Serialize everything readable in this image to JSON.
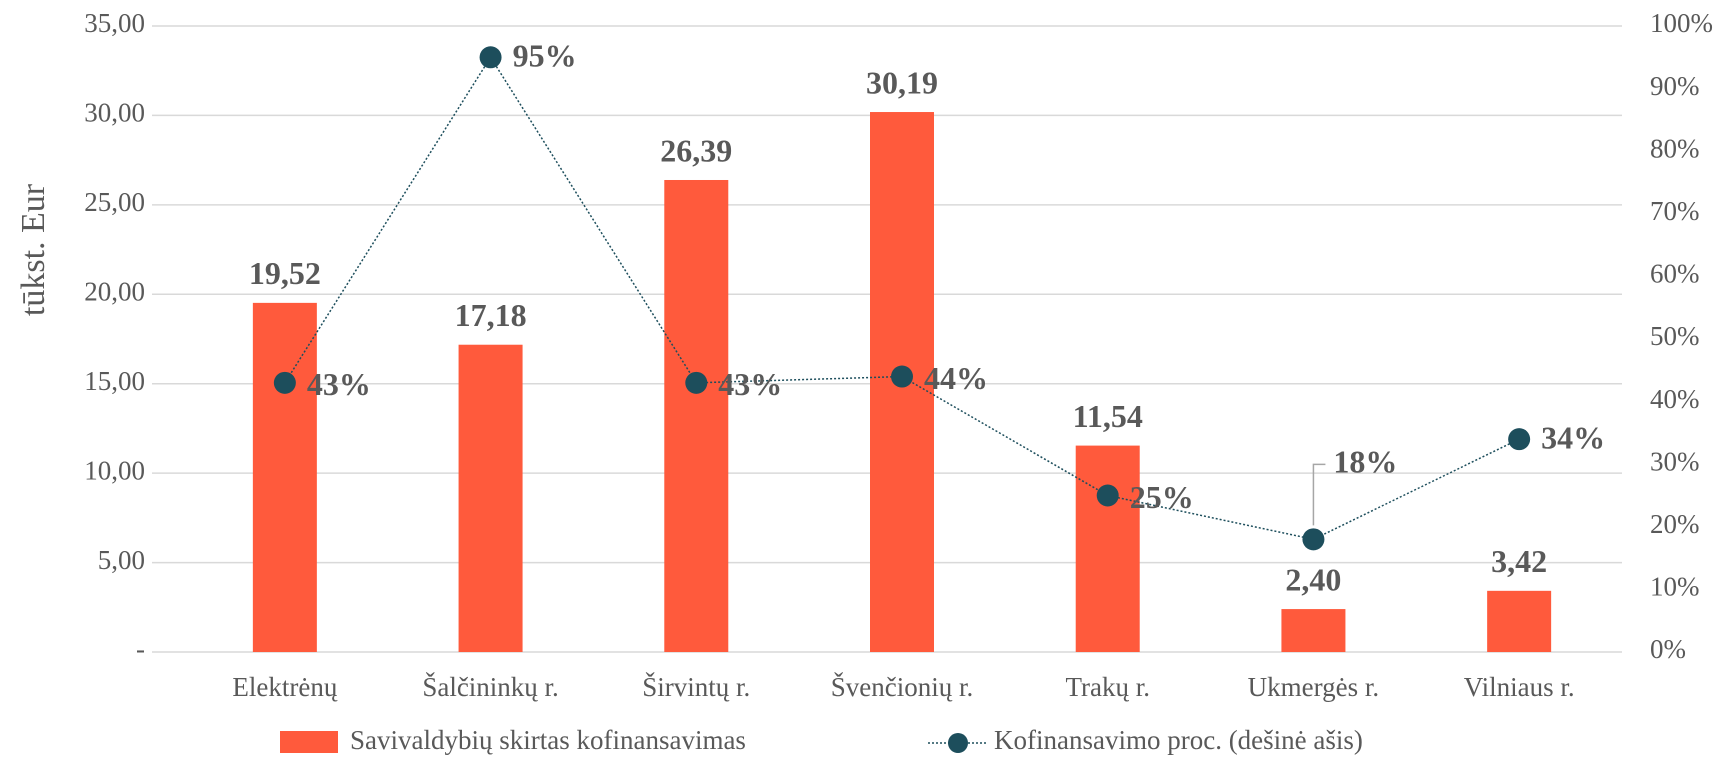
{
  "chart_data": {
    "type": "bar_line",
    "y_label": "tūkst. Eur",
    "categories": [
      "Elektrėnų",
      "Šalčininkų r.",
      "Širvintų r.",
      "Švenčionių r.",
      "Trakų r.",
      "Ukmergės r.",
      "Vilniaus r."
    ],
    "series": [
      {
        "name": "Savivaldybių skirtas kofinansavimas",
        "color": "#ff5a3c",
        "type": "bar",
        "values": [
          19.52,
          17.18,
          26.39,
          30.19,
          11.54,
          2.4,
          3.42
        ],
        "value_labels": [
          "19,52",
          "17,18",
          "26,39",
          "30,19",
          "11,54",
          "2,40",
          "3,42"
        ]
      },
      {
        "name": "Kofinansavimo proc. (dešinė ašis)",
        "color": "#1d4e5c",
        "type": "line",
        "axis": "y2",
        "values": [
          43,
          95,
          43,
          44,
          25,
          18,
          34
        ],
        "value_labels": [
          "43%",
          "95%",
          "43%",
          "44%",
          "25%",
          "18%",
          "34%"
        ]
      }
    ],
    "ylim": [
      0,
      35
    ],
    "yticks": [
      {
        "value": 0,
        "label": "-"
      },
      {
        "value": 5,
        "label": "5,00"
      },
      {
        "value": 10,
        "label": "10,00"
      },
      {
        "value": 15,
        "label": "15,00"
      },
      {
        "value": 20,
        "label": "20,00"
      },
      {
        "value": 25,
        "label": "25,00"
      },
      {
        "value": 30,
        "label": "30,00"
      },
      {
        "value": 35,
        "label": "35,00"
      }
    ],
    "y2lim": [
      0,
      100
    ],
    "y2ticks": [
      {
        "value": 0,
        "label": "0%"
      },
      {
        "value": 10,
        "label": "10%"
      },
      {
        "value": 20,
        "label": "20%"
      },
      {
        "value": 30,
        "label": "30%"
      },
      {
        "value": 40,
        "label": "40%"
      },
      {
        "value": 50,
        "label": "50%"
      },
      {
        "value": 60,
        "label": "60%"
      },
      {
        "value": 70,
        "label": "70%"
      },
      {
        "value": 80,
        "label": "80%"
      },
      {
        "value": 90,
        "label": "90%"
      },
      {
        "value": 100,
        "label": "100%"
      }
    ],
    "grid": true,
    "legend": "bottom"
  }
}
